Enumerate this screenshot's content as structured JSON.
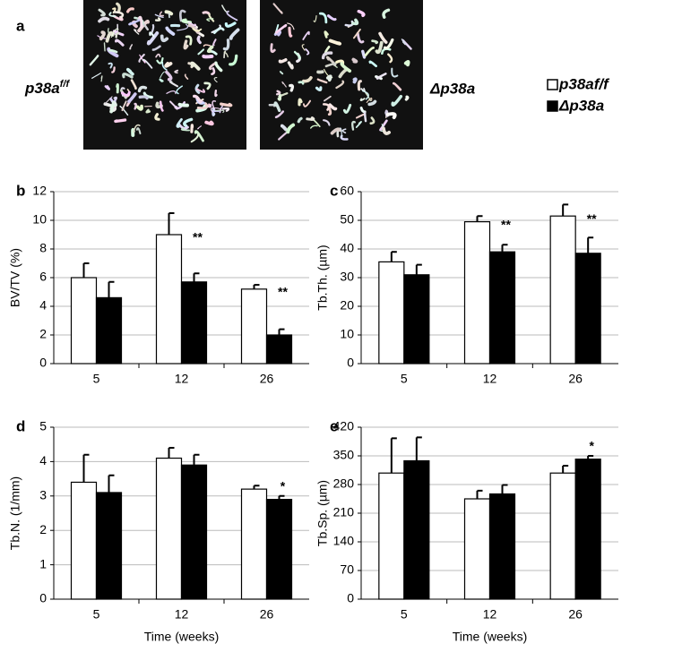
{
  "panel_a": {
    "label": "a",
    "images": [
      {
        "label": "p38a",
        "superscript": "f/f"
      },
      {
        "label": "Δp38a"
      }
    ]
  },
  "legend": [
    {
      "name": "p38af/f",
      "color": "#ffffff"
    },
    {
      "name": "Δp38a",
      "color": "#000000"
    }
  ],
  "chart_data": [
    {
      "type": "bar",
      "panel": "b",
      "ylabel": "BV/TV (%)",
      "categories": [
        "5",
        "12",
        "26"
      ],
      "series": [
        {
          "color": "#ffffff",
          "values": [
            6.0,
            9.0,
            5.2
          ],
          "errors": [
            1.0,
            1.5,
            0.3
          ]
        },
        {
          "color": "#000000",
          "values": [
            4.6,
            5.7,
            2.0
          ],
          "errors": [
            1.1,
            0.6,
            0.4
          ]
        }
      ],
      "annotations": [
        null,
        "**",
        "**"
      ],
      "ylim": [
        0,
        12
      ],
      "yticks": [
        0,
        2,
        4,
        6,
        8,
        10,
        12
      ],
      "grid": true
    },
    {
      "type": "bar",
      "panel": "c",
      "ylabel": "Tb.Th. (µm)",
      "categories": [
        "5",
        "12",
        "26"
      ],
      "series": [
        {
          "color": "#ffffff",
          "values": [
            35.5,
            49.5,
            51.5
          ],
          "errors": [
            3.5,
            2,
            4
          ]
        },
        {
          "color": "#000000",
          "values": [
            31,
            39,
            38.5
          ],
          "errors": [
            3.5,
            2.5,
            5.5
          ]
        }
      ],
      "annotations": [
        null,
        "**",
        "**"
      ],
      "ylim": [
        0,
        60
      ],
      "yticks": [
        0,
        10,
        20,
        30,
        40,
        50,
        60
      ],
      "grid": true
    },
    {
      "type": "bar",
      "panel": "d",
      "ylabel": "Tb.N. (1/mm)",
      "xlabel": "Time (weeks)",
      "categories": [
        "5",
        "12",
        "26"
      ],
      "series": [
        {
          "color": "#ffffff",
          "values": [
            3.4,
            4.1,
            3.2
          ],
          "errors": [
            0.8,
            0.3,
            0.1
          ]
        },
        {
          "color": "#000000",
          "values": [
            3.1,
            3.9,
            2.9
          ],
          "errors": [
            0.5,
            0.3,
            0.1
          ]
        }
      ],
      "annotations": [
        null,
        null,
        "*"
      ],
      "ylim": [
        0,
        5
      ],
      "yticks": [
        0,
        1,
        2,
        3,
        4,
        5
      ],
      "grid": true
    },
    {
      "type": "bar",
      "panel": "e",
      "ylabel": "Tb.Sp. (µm)",
      "xlabel": "Time (weeks)",
      "categories": [
        "5",
        "12",
        "26"
      ],
      "series": [
        {
          "color": "#ffffff",
          "values": [
            308,
            245,
            308
          ],
          "errors": [
            85,
            20,
            18
          ]
        },
        {
          "color": "#000000",
          "values": [
            338,
            257,
            342
          ],
          "errors": [
            57,
            22,
            8
          ]
        }
      ],
      "annotations": [
        null,
        null,
        "*"
      ],
      "ylim": [
        0,
        420
      ],
      "yticks": [
        0,
        70,
        140,
        210,
        280,
        350,
        420
      ],
      "grid": true
    }
  ]
}
